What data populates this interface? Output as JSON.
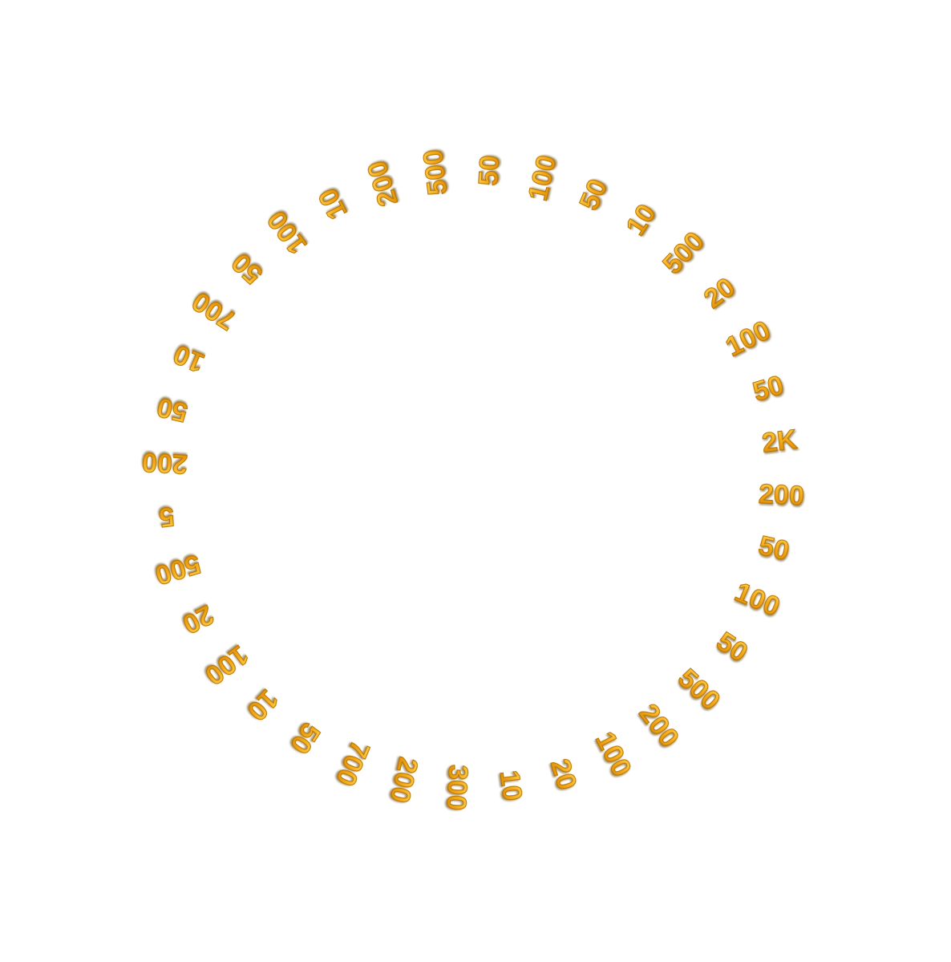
{
  "wheel": {
    "text_color": "#f0a71a",
    "prizes": [
      "50",
      "100",
      "50",
      "10",
      "500",
      "20",
      "100",
      "50",
      "2K",
      "200",
      "50",
      "100",
      "50",
      "500",
      "200",
      "100",
      "20",
      "10",
      "300",
      "200",
      "700",
      "50",
      "10",
      "100",
      "20",
      "500",
      "5",
      "200",
      "50",
      "10",
      "700",
      "50",
      "100",
      "10",
      "200",
      "500"
    ]
  }
}
